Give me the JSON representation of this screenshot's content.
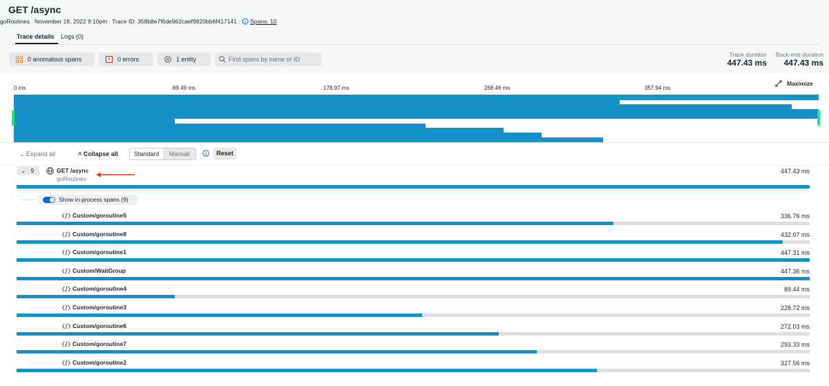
{
  "header": {
    "title": "GET /async",
    "service": "goRoutines",
    "date": "November 18, 2022 9:10pm",
    "trace_id": "Trace ID: 358b8e7f6de962caef9820bb6f417141",
    "spans": "Spans: 10"
  },
  "tabs": [
    "Trace details",
    "Logs (0)"
  ],
  "filters": [
    "0 anomalous spans",
    "0 errors",
    "1 entity"
  ],
  "search_placeholder": "Find spans by name or ID",
  "durations": [
    {
      "label": "Trace duration",
      "value": "447.43 ms"
    },
    {
      "label": "Back-end duration",
      "value": "447.43 ms"
    }
  ],
  "timeline": {
    "ticks": [
      "0 ms",
      "89.49 ms",
      "178.97 ms",
      "268.46 ms",
      "357.94 ms"
    ],
    "maximize": "Maximize"
  },
  "toolbar": {
    "expand": "Expand all",
    "collapse": "Collapse all",
    "modes": [
      "Standard",
      "Manual"
    ],
    "reset": "Reset"
  },
  "root": {
    "count": "9",
    "name": "GET /async",
    "service": "goRoutines",
    "duration": "447.43 ms"
  },
  "toggle": "Show in-process spans (9)",
  "spans": [
    {
      "name": "Custom/goroutine5",
      "duration": "336.76 ms"
    },
    {
      "name": "Custom/goroutine8",
      "duration": "432.07 ms"
    },
    {
      "name": "Custom/goroutine1",
      "duration": "447.31 ms"
    },
    {
      "name": "Custom/WaitGroup",
      "duration": "447.36 ms"
    },
    {
      "name": "Custom/goroutine4",
      "duration": "89.44 ms"
    },
    {
      "name": "Custom/goroutine3",
      "duration": "228.72 ms"
    },
    {
      "name": "Custom/goroutine6",
      "duration": "272.03 ms"
    },
    {
      "name": "Custom/goroutine7",
      "duration": "293.33 ms"
    },
    {
      "name": "Custom/goroutine2",
      "duration": "327.56 ms"
    }
  ]
}
